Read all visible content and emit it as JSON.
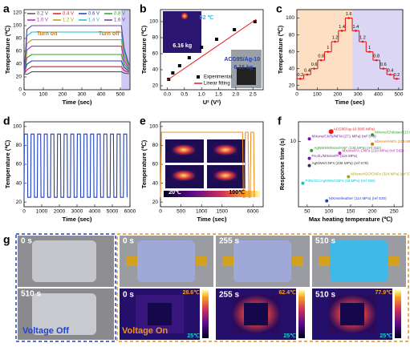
{
  "chart_data": [
    {
      "type": "line",
      "panel_label": "a",
      "x_label": "Time (sec)",
      "y_label": "Temperature (℃)",
      "xlim": [
        0,
        550
      ],
      "ylim": [
        0,
        125
      ],
      "xticks": [
        0,
        100,
        200,
        300,
        400,
        500
      ],
      "yticks": [
        0,
        20,
        40,
        60,
        80,
        100,
        120
      ],
      "legend": true,
      "shaded_regions": [
        {
          "from": 505,
          "to": 550,
          "color": "#cfc8f2"
        }
      ],
      "annotations": [
        {
          "text": "Turn on",
          "color": "#e07000"
        },
        {
          "text": "Turn off",
          "color": "#e07000"
        }
      ],
      "x": [
        0,
        15,
        40,
        505,
        520,
        545
      ],
      "series": [
        {
          "name": "0.2 V",
          "color": "#555555",
          "values": [
            25,
            24,
            28,
            28,
            26,
            25
          ]
        },
        {
          "name": "0.4 V",
          "color": "#e41a1c",
          "values": [
            25,
            31,
            36,
            36,
            30,
            27
          ]
        },
        {
          "name": "0.6 V",
          "color": "#1f3fbf",
          "values": [
            25,
            40,
            45,
            45,
            35,
            29
          ]
        },
        {
          "name": "0.8 V",
          "color": "#2ca02c",
          "values": [
            25,
            50,
            55,
            55,
            40,
            31
          ]
        },
        {
          "name": "1.0 V",
          "color": "#c020c0",
          "values": [
            25,
            62,
            68,
            68,
            46,
            33
          ]
        },
        {
          "name": "1.2 V",
          "color": "#b0a000",
          "values": [
            25,
            72,
            78,
            78,
            52,
            35
          ]
        },
        {
          "name": "1.4 V",
          "color": "#17becf",
          "values": [
            25,
            84,
            90,
            90,
            58,
            37
          ]
        },
        {
          "name": "1.6 V",
          "color": "#6a3d9a",
          "values": [
            25,
            94,
            100,
            100,
            64,
            39
          ]
        }
      ]
    },
    {
      "type": "scatter",
      "panel_label": "b",
      "x_label": "U² (V²)",
      "y_label": "Temperature (℃)",
      "xlim": [
        -0.2,
        2.8
      ],
      "ylim": [
        15,
        115
      ],
      "xticks": [
        {
          "value": 0,
          "label": "0.0"
        },
        0.5,
        {
          "value": 1,
          "label": "1.0"
        },
        1.5,
        {
          "value": 2,
          "label": "2.0"
        },
        2.5
      ],
      "yticks": [
        20,
        40,
        60,
        80,
        100
      ],
      "legend": true,
      "annotations": [
        {
          "text": "52 ℃",
          "color": "#00c8ff"
        },
        {
          "text": "6.16 kg",
          "color": "#ffffff"
        },
        {
          "text": "ACG95/Ag-10",
          "color": "#1f3fbf"
        },
        {
          "text": "6.16 kg",
          "color": "#1f3fbf"
        }
      ],
      "series": [
        {
          "name": "Experimental",
          "color": "#000000",
          "mode": "markers",
          "x": [
            0.04,
            0.16,
            0.36,
            0.64,
            1.0,
            1.44,
            1.96,
            2.56
          ],
          "values": [
            28,
            36,
            45,
            55,
            68,
            78,
            90,
            100
          ]
        },
        {
          "name": "Linear fitting",
          "color": "#e41a1c",
          "mode": "lines",
          "x": [
            0,
            2.6
          ],
          "values": [
            27,
            103
          ]
        }
      ]
    },
    {
      "type": "step",
      "panel_label": "c",
      "x_label": "Time (sec)",
      "y_label": "Temperature (℃)",
      "xlim": [
        0,
        520
      ],
      "ylim": [
        15,
        110
      ],
      "xticks": [
        0,
        100,
        200,
        300,
        400,
        500
      ],
      "yticks": [
        20,
        40,
        60,
        80,
        100
      ],
      "shaded_regions": [
        {
          "from": 0,
          "to": 272,
          "color": "#fde0c4"
        },
        {
          "from": 272,
          "to": 520,
          "color": "#dcd6f5"
        }
      ],
      "color": "#e41a1c",
      "x": [
        0,
        34,
        68,
        102,
        136,
        170,
        204,
        238,
        272,
        306,
        340,
        374,
        408,
        442,
        476
      ],
      "values": [
        28,
        33,
        40,
        50,
        60,
        72,
        85,
        100,
        85,
        72,
        60,
        50,
        40,
        33,
        28
      ],
      "step_labels": [
        0.2,
        0.4,
        0.6,
        0.8,
        1.0,
        1.2,
        1.4,
        1.6,
        1.4,
        1.2,
        1.0,
        0.8,
        0.6,
        0.4,
        0.2
      ]
    },
    {
      "type": "line",
      "panel_label": "d",
      "x_label": "Time (sec)",
      "y_label": "Temperature (℃)",
      "xlim": [
        0,
        6000
      ],
      "ylim": [
        15,
        105
      ],
      "xticks": [
        0,
        1000,
        2000,
        3000,
        4000,
        5000,
        6000
      ],
      "yticks": [
        20,
        40,
        60,
        80,
        100
      ],
      "x": [
        0,
        20,
        190,
        210,
        375,
        395,
        565,
        585,
        750,
        770,
        940,
        960,
        1125,
        1145,
        1315,
        1335,
        1500,
        1520,
        1690,
        1710,
        1875,
        1895,
        2065,
        2085,
        2250,
        2270,
        2440,
        2460,
        2625,
        2645,
        2815,
        2835,
        3000,
        3020,
        3190,
        3210,
        3375,
        3395,
        3565,
        3585,
        3750,
        3770,
        3940,
        3960,
        4125,
        4145,
        4315,
        4335,
        4500,
        4520,
        4690,
        4710,
        4875,
        4895,
        5065,
        5085,
        5250,
        5270,
        5440,
        5460,
        5625,
        5645,
        5815,
        5835
      ],
      "series": [
        {
          "color": "#1f3fbf",
          "values": [
            25,
            92,
            92,
            25,
            25,
            92,
            92,
            25,
            25,
            92,
            92,
            25,
            25,
            92,
            92,
            25,
            25,
            92,
            92,
            25,
            25,
            92,
            92,
            25,
            25,
            92,
            92,
            25,
            25,
            92,
            92,
            25,
            25,
            92,
            92,
            25,
            25,
            92,
            92,
            25,
            25,
            92,
            92,
            25,
            25,
            92,
            92,
            25,
            25,
            92,
            92,
            25,
            25,
            92,
            92,
            25,
            25,
            92,
            92,
            25,
            25,
            92,
            92,
            25
          ]
        }
      ]
    },
    {
      "type": "line",
      "panel_label": "e",
      "x_label": "Time (sec)",
      "y_label": "Temperature (℃)",
      "xlim": [
        0,
        6300
      ],
      "ylim": [
        15,
        105
      ],
      "axis_break": [
        1800,
        5600
      ],
      "xticks": [
        0,
        500,
        1000,
        1500,
        6000
      ],
      "yticks": [
        20,
        40,
        60,
        80,
        100
      ],
      "annotations": [
        {
          "text": "20℃",
          "color": "#ffffff"
        },
        {
          "text": "100℃",
          "color": "#000000"
        }
      ],
      "x": [
        0,
        25,
        5700,
        5720,
        5760,
        5780,
        5860,
        5880,
        5920,
        5940,
        6020,
        6040
      ],
      "series": [
        {
          "color": "#f09020",
          "values": [
            25,
            94,
            94,
            25,
            25,
            94,
            94,
            25,
            25,
            94,
            94,
            25
          ]
        }
      ]
    },
    {
      "type": "scatter",
      "panel_label": "f",
      "x_label": "Max heating temperature (℃)",
      "y_label": "Response time (s)",
      "xlim": [
        30,
        270
      ],
      "ylim": [
        0,
        13
      ],
      "xticks": [
        50,
        100,
        150,
        200,
        250
      ],
      "yticks": [
        10
      ],
      "point_labels": true,
      "series": [
        {
          "name": "ACG95/Ag-10 (605 MPa)",
          "color": "#e41a1c",
          "x": [
            105
          ],
          "values": [
            11.5
          ]
        },
        {
          "name": "MXene/CNTs/NFM (271 MPa) (ref S78)",
          "color": "#6a1b9a",
          "x": [
            55
          ],
          "values": [
            10.4
          ]
        },
        {
          "name": "AgNWs/MXene/ANF (236 MPa) (ref S82)",
          "color": "#2ca02c",
          "x": [
            60
          ],
          "values": [
            8.6
          ]
        },
        {
          "name": "Fe₃O₄/MXene/PI (115 MPa)",
          "color": "#6a1b9a",
          "x": [
            55
          ],
          "values": [
            7.4
          ]
        },
        {
          "name": "AgNWs/CNFs (236 MPa) (ref S79)",
          "color": "#333333",
          "x": [
            55
          ],
          "values": [
            6.3
          ]
        },
        {
          "name": "PdNi/GC/AgNWs/CNFs (16 MPa) (ref S80)",
          "color": "#17becf",
          "x": [
            40
          ],
          "values": [
            3.6
          ]
        },
        {
          "name": "MXene/PA-CNFs (229 MPa) (ref S82)",
          "color": "#c020c0",
          "x": [
            125
          ],
          "values": [
            8.2
          ]
        },
        {
          "name": "MXene/ANFs (109 MPa) (ref S77)",
          "color": "#e07000",
          "x": [
            200
          ],
          "values": [
            9.6
          ]
        },
        {
          "name": "MXene/Chitosan (13 MPa) (ref S22)",
          "color": "#2ca02c",
          "x": [
            200
          ],
          "values": [
            11.0
          ]
        },
        {
          "name": "MXene/rGO/CNFs (324 MPa) (ref S76)",
          "color": "#b0a000",
          "x": [
            145
          ],
          "values": [
            4.6
          ]
        },
        {
          "name": "MXene/leather (114 MPa) (ref S20)",
          "color": "#1f3fbf",
          "x": [
            95
          ],
          "values": [
            0.9
          ]
        }
      ]
    }
  ],
  "panel_g": {
    "label": "g",
    "left_caption": "Voltage Off",
    "right_caption": "Voltage On",
    "left_times": [
      "0 s",
      "510 s"
    ],
    "photo_times": [
      "0 s",
      "255 s",
      "510 s"
    ],
    "thermal_times": [
      "0 s",
      "255 s",
      "510 s"
    ],
    "thermal_max": [
      "28.6℃",
      "62.4℃",
      "77.9℃"
    ],
    "thermal_min": [
      "25℃",
      "25℃",
      "25℃"
    ]
  }
}
